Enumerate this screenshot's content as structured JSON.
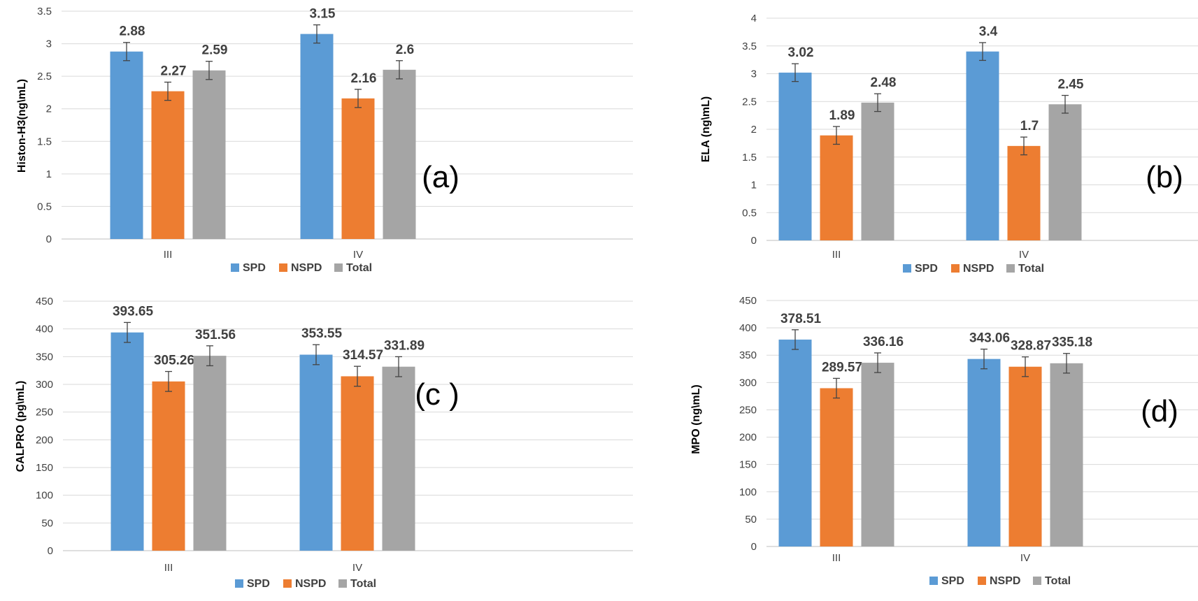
{
  "colors": {
    "SPD": "#5b9bd5",
    "NSPD": "#ed7d31",
    "Total": "#a5a5a5",
    "grid": "#d9d9d9",
    "axis": "#bfbfbf",
    "label": "#404040"
  },
  "chart_data": [
    {
      "type": "bar",
      "panel_label": "(a)",
      "ylabel": "Histon-H3(ng\\mL)",
      "categories": [
        "III",
        "IV"
      ],
      "series": [
        {
          "name": "SPD",
          "values": [
            2.88,
            3.15
          ],
          "labels": [
            "2.88",
            "3.15"
          ]
        },
        {
          "name": "NSPD",
          "values": [
            2.27,
            2.16
          ],
          "labels": [
            "2.27",
            "2.16"
          ]
        },
        {
          "name": "Total",
          "values": [
            2.59,
            2.6
          ],
          "labels": [
            "2.59",
            "2.6"
          ]
        }
      ],
      "yticks": [
        "0",
        "0.5",
        "1",
        "1.5",
        "2",
        "2.5",
        "3",
        "3.5"
      ],
      "ylim": [
        0,
        3.5
      ],
      "grid": true,
      "legend": "bottom"
    },
    {
      "type": "bar",
      "panel_label": "(b)",
      "ylabel": "ELA (ng\\mL)",
      "categories": [
        "III",
        "IV"
      ],
      "series": [
        {
          "name": "SPD",
          "values": [
            3.02,
            3.4
          ],
          "labels": [
            "3.02",
            "3.4"
          ]
        },
        {
          "name": "NSPD",
          "values": [
            1.89,
            1.7
          ],
          "labels": [
            "1.89",
            "1.7"
          ]
        },
        {
          "name": "Total",
          "values": [
            2.48,
            2.45
          ],
          "labels": [
            "2.48",
            "2.45"
          ]
        }
      ],
      "yticks": [
        "0",
        "0.5",
        "1",
        "1.5",
        "2",
        "2.5",
        "3",
        "3.5",
        "4"
      ],
      "ylim": [
        0,
        4
      ],
      "grid": true,
      "legend": "bottom"
    },
    {
      "type": "bar",
      "panel_label": "(c )",
      "ylabel": "CALPRO (pg\\mL)",
      "categories": [
        "III",
        "IV"
      ],
      "series": [
        {
          "name": "SPD",
          "values": [
            393.65,
            353.55
          ],
          "labels": [
            "393.65",
            "353.55"
          ]
        },
        {
          "name": "NSPD",
          "values": [
            305.26,
            314.57
          ],
          "labels": [
            "305.26",
            "314.57"
          ]
        },
        {
          "name": "Total",
          "values": [
            351.56,
            331.89
          ],
          "labels": [
            "351.56",
            "331.89"
          ]
        }
      ],
      "yticks": [
        "0",
        "50",
        "100",
        "150",
        "200",
        "250",
        "300",
        "350",
        "400",
        "450"
      ],
      "ylim": [
        0,
        450
      ],
      "grid": true,
      "legend": "bottom"
    },
    {
      "type": "bar",
      "panel_label": "(d)",
      "ylabel": "MPO (ng\\mL)",
      "categories": [
        "III",
        "IV"
      ],
      "series": [
        {
          "name": "SPD",
          "values": [
            378.51,
            343.06
          ],
          "labels": [
            "378.51",
            "343.06"
          ]
        },
        {
          "name": "NSPD",
          "values": [
            289.57,
            328.87
          ],
          "labels": [
            "289.57",
            "328.87"
          ]
        },
        {
          "name": "Total",
          "values": [
            336.16,
            335.18
          ],
          "labels": [
            "336.16",
            "335.18"
          ]
        }
      ],
      "yticks": [
        "0",
        "50",
        "100",
        "150",
        "200",
        "250",
        "300",
        "350",
        "400",
        "450"
      ],
      "ylim": [
        0,
        450
      ],
      "grid": true,
      "legend": "bottom"
    }
  ]
}
